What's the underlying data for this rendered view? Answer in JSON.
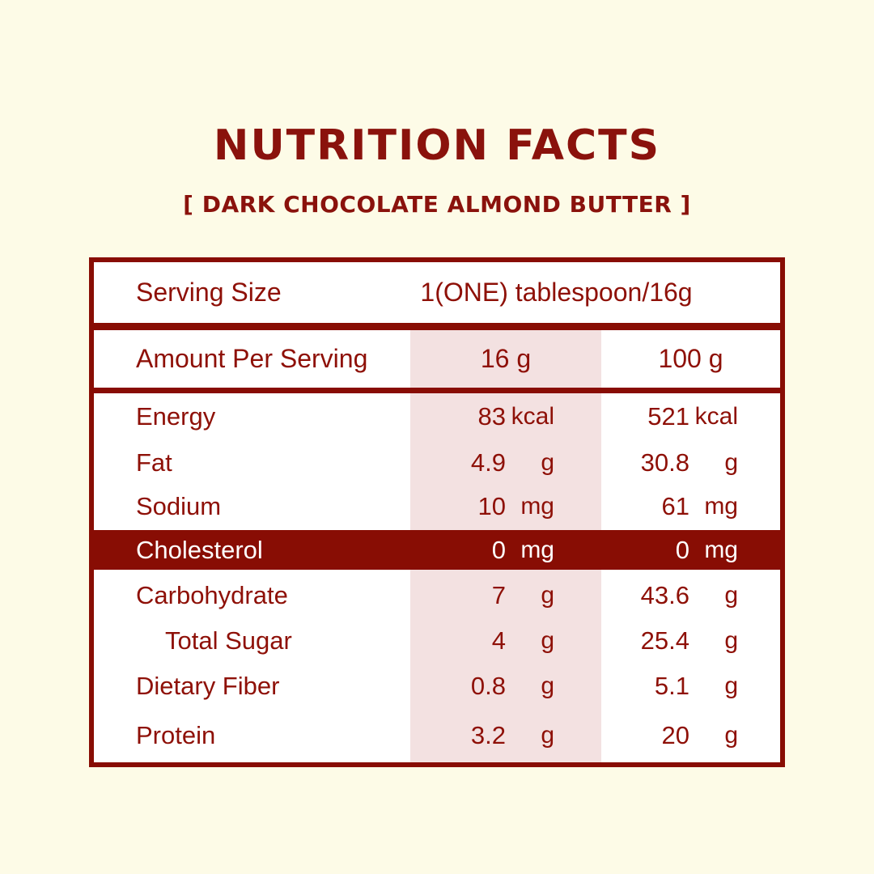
{
  "colors": {
    "background": "#FDFBE7",
    "accent_red": "#880D04",
    "text_red": "#8E1007",
    "title_red": "#8A120C",
    "highlight_column_pink": "#F3E1E1",
    "table_background": "#FFFFFF",
    "highlight_row_text": "#FFFFFF"
  },
  "header": {
    "title": "NUTRITION FACTS",
    "subtitle": "[ DARK CHOCOLATE ALMOND BUTTER ]"
  },
  "table": {
    "serving": {
      "label": "Serving Size",
      "value": "1(ONE) tablespoon/16g"
    },
    "columns": {
      "label": "Amount Per Serving",
      "per_serving": "16 g",
      "per_100g": "100 g"
    },
    "rows": [
      {
        "label": "Energy",
        "per_serving": {
          "value": "83",
          "unit": "kcal"
        },
        "per_100g": {
          "value": "521",
          "unit": "kcal"
        },
        "highlight": false,
        "indent": false
      },
      {
        "label": "Fat",
        "per_serving": {
          "value": "4.9",
          "unit": "g"
        },
        "per_100g": {
          "value": "30.8",
          "unit": "g"
        },
        "highlight": false,
        "indent": false
      },
      {
        "label": "Sodium",
        "per_serving": {
          "value": "10",
          "unit": "mg"
        },
        "per_100g": {
          "value": "61",
          "unit": "mg"
        },
        "highlight": false,
        "indent": false
      },
      {
        "label": "Cholesterol",
        "per_serving": {
          "value": "0",
          "unit": "mg"
        },
        "per_100g": {
          "value": "0",
          "unit": "mg"
        },
        "highlight": true,
        "indent": false
      },
      {
        "label": "Carbohydrate",
        "per_serving": {
          "value": "7",
          "unit": "g"
        },
        "per_100g": {
          "value": "43.6",
          "unit": "g"
        },
        "highlight": false,
        "indent": false
      },
      {
        "label": "Total Sugar",
        "per_serving": {
          "value": "4",
          "unit": "g"
        },
        "per_100g": {
          "value": "25.4",
          "unit": "g"
        },
        "highlight": false,
        "indent": true
      },
      {
        "label": "Dietary Fiber",
        "per_serving": {
          "value": "0.8",
          "unit": "g"
        },
        "per_100g": {
          "value": "5.1",
          "unit": "g"
        },
        "highlight": false,
        "indent": false
      },
      {
        "label": "Protein",
        "per_serving": {
          "value": "3.2",
          "unit": "g"
        },
        "per_100g": {
          "value": "20",
          "unit": "g"
        },
        "highlight": false,
        "indent": false
      }
    ]
  }
}
